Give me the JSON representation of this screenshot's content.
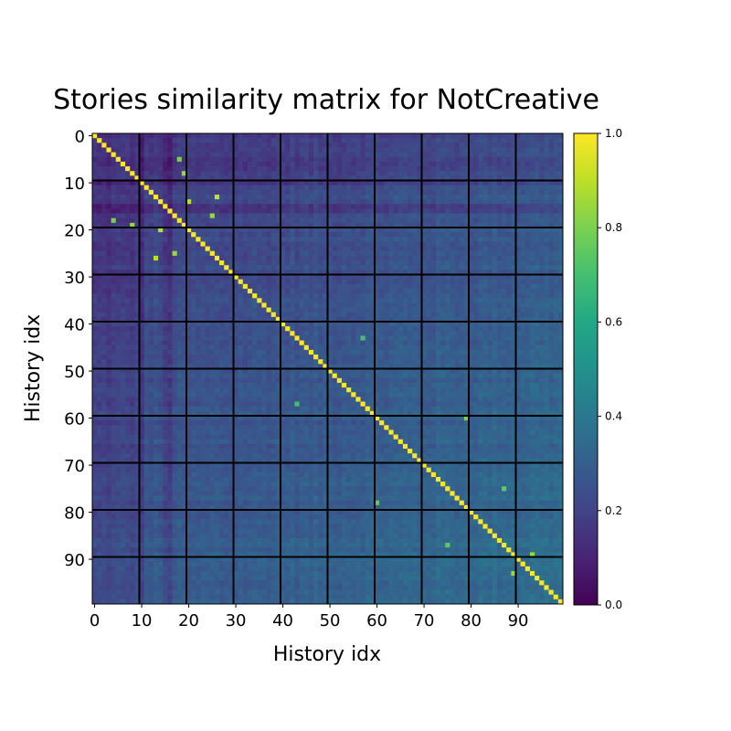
{
  "chart_data": {
    "type": "heatmap",
    "title": "Stories similarity matrix for NotCreative",
    "xlabel": "History idx",
    "ylabel": "History idx",
    "n": 100,
    "x_ticks": [
      0,
      10,
      20,
      30,
      40,
      50,
      60,
      70,
      80,
      90
    ],
    "y_ticks": [
      0,
      10,
      20,
      30,
      40,
      50,
      60,
      70,
      80,
      90
    ],
    "x_tick_labels": [
      "0",
      "10",
      "20",
      "30",
      "40",
      "50",
      "60",
      "70",
      "80",
      "90"
    ],
    "y_tick_labels": [
      "0",
      "10",
      "20",
      "30",
      "40",
      "50",
      "60",
      "70",
      "80",
      "90"
    ],
    "block_boundaries": [
      9.5,
      19.5,
      29.5,
      39.5,
      49.5,
      59.5,
      69.5,
      79.5,
      89.5
    ],
    "diagonal_value": 1.0,
    "value_range": [
      0.0,
      1.0
    ],
    "colorbar": {
      "ticks": [
        0.0,
        0.2,
        0.4,
        0.6,
        0.8,
        1.0
      ],
      "tick_labels": [
        "0.0",
        "0.2",
        "0.4",
        "0.6",
        "0.8",
        "1.0"
      ],
      "colormap": "viridis"
    },
    "off_diagonal_highlights": [
      {
        "row": 5,
        "col": 18,
        "value": 0.8
      },
      {
        "row": 8,
        "col": 19,
        "value": 0.85
      },
      {
        "row": 13,
        "col": 26,
        "value": 0.9
      },
      {
        "row": 14,
        "col": 20,
        "value": 0.9
      },
      {
        "row": 17,
        "col": 25,
        "value": 0.85
      },
      {
        "row": 18,
        "col": 4,
        "value": 0.8
      },
      {
        "row": 19,
        "col": 8,
        "value": 0.85
      },
      {
        "row": 20,
        "col": 14,
        "value": 0.9
      },
      {
        "row": 25,
        "col": 17,
        "value": 0.85
      },
      {
        "row": 26,
        "col": 13,
        "value": 0.9
      },
      {
        "row": 43,
        "col": 57,
        "value": 0.7
      },
      {
        "row": 57,
        "col": 43,
        "value": 0.7
      },
      {
        "row": 60,
        "col": 79,
        "value": 0.8
      },
      {
        "row": 75,
        "col": 87,
        "value": 0.75
      },
      {
        "row": 78,
        "col": 60,
        "value": 0.75
      },
      {
        "row": 87,
        "col": 75,
        "value": 0.75
      },
      {
        "row": 89,
        "col": 93,
        "value": 0.85
      },
      {
        "row": 93,
        "col": 89,
        "value": 0.85
      }
    ]
  }
}
